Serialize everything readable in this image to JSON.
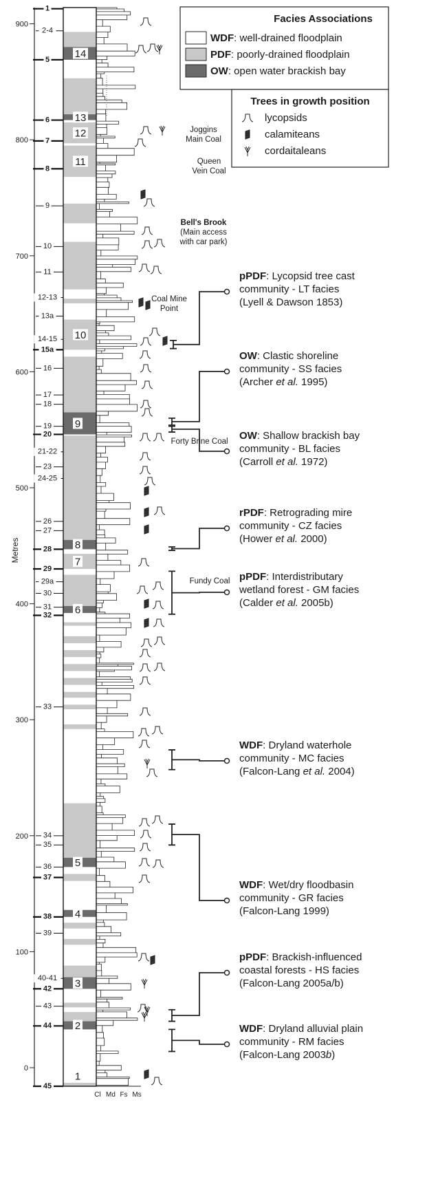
{
  "axis": {
    "label": "Metres",
    "ylim": [
      -16,
      914
    ],
    "yticks": [
      0,
      100,
      200,
      300,
      400,
      500,
      600,
      700,
      800,
      900
    ]
  },
  "seams": [
    {
      "label": "1",
      "metres": 913,
      "major": true
    },
    {
      "label": "2-4",
      "metres": 894,
      "major": false
    },
    {
      "label": "5",
      "metres": 869,
      "major": true
    },
    {
      "label": "6",
      "metres": 817,
      "major": true
    },
    {
      "label": "7",
      "metres": 799,
      "major": true
    },
    {
      "label": "8",
      "metres": 775,
      "major": true
    },
    {
      "label": "9",
      "metres": 743,
      "major": false
    },
    {
      "label": "10",
      "metres": 708,
      "major": false
    },
    {
      "label": "11",
      "metres": 686,
      "major": false
    },
    {
      "label": "12-13",
      "metres": 664,
      "major": false
    },
    {
      "label": "13a",
      "metres": 648,
      "major": false
    },
    {
      "label": "14-15",
      "metres": 628,
      "major": false
    },
    {
      "label": "15a",
      "metres": 619,
      "major": true
    },
    {
      "label": "16",
      "metres": 603,
      "major": false
    },
    {
      "label": "17",
      "metres": 580,
      "major": false
    },
    {
      "label": "18",
      "metres": 572,
      "major": false
    },
    {
      "label": "19",
      "metres": 553,
      "major": false
    },
    {
      "label": "20",
      "metres": 546,
      "major": true
    },
    {
      "label": "21-22",
      "metres": 531,
      "major": false
    },
    {
      "label": "23",
      "metres": 518,
      "major": false
    },
    {
      "label": "24-25",
      "metres": 508,
      "major": false
    },
    {
      "label": "26",
      "metres": 471,
      "major": false
    },
    {
      "label": "27",
      "metres": 463,
      "major": false
    },
    {
      "label": "28",
      "metres": 447,
      "major": true
    },
    {
      "label": "29",
      "metres": 430,
      "major": true
    },
    {
      "label": "29a",
      "metres": 419,
      "major": false
    },
    {
      "label": "30",
      "metres": 409,
      "major": false
    },
    {
      "label": "31",
      "metres": 397,
      "major": false
    },
    {
      "label": "32",
      "metres": 390,
      "major": true
    },
    {
      "label": "33",
      "metres": 311,
      "major": false
    },
    {
      "label": "34",
      "metres": 200,
      "major": false
    },
    {
      "label": "35",
      "metres": 192,
      "major": false
    },
    {
      "label": "36",
      "metres": 173,
      "major": false
    },
    {
      "label": "37",
      "metres": 164,
      "major": true
    },
    {
      "label": "38",
      "metres": 130,
      "major": true
    },
    {
      "label": "39",
      "metres": 116,
      "major": false
    },
    {
      "label": "40-41",
      "metres": 77,
      "major": false
    },
    {
      "label": "42",
      "metres": 68,
      "major": true
    },
    {
      "label": "43",
      "metres": 53,
      "major": false
    },
    {
      "label": "44",
      "metres": 36,
      "major": true
    },
    {
      "label": "45",
      "metres": -16,
      "major": true
    }
  ],
  "facies": [
    {
      "type": "PDF",
      "top": 893,
      "base": 885
    },
    {
      "type": "PDF",
      "top": 885,
      "base": 880
    },
    {
      "type": "OW",
      "top": 880,
      "base": 869,
      "label": "14"
    },
    {
      "type": "PDF",
      "top": 853,
      "base": 822
    },
    {
      "type": "OW",
      "top": 822,
      "base": 817,
      "label": "13"
    },
    {
      "type": "PDF",
      "top": 815,
      "base": 797,
      "label": "12"
    },
    {
      "type": "PDF",
      "top": 795,
      "base": 768,
      "label": "11"
    },
    {
      "type": "PDF",
      "top": 745,
      "base": 728
    },
    {
      "type": "PDF",
      "top": 712,
      "base": 671
    },
    {
      "type": "PDF",
      "top": 663,
      "base": 659
    },
    {
      "type": "PDF",
      "top": 645,
      "base": 619,
      "label": "10"
    },
    {
      "type": "PDF",
      "top": 613,
      "base": 565
    },
    {
      "type": "OW",
      "top": 565,
      "base": 546,
      "label": "9"
    },
    {
      "type": "PDF",
      "top": 545,
      "base": 455
    },
    {
      "type": "OW",
      "top": 455,
      "base": 447,
      "label": "8"
    },
    {
      "type": "PDF",
      "top": 443,
      "base": 430,
      "label": "7"
    },
    {
      "type": "PDF",
      "top": 425,
      "base": 398
    },
    {
      "type": "OW",
      "top": 398,
      "base": 392,
      "label": "6"
    },
    {
      "type": "PDF",
      "top": 384,
      "base": 381
    },
    {
      "type": "PDF",
      "top": 372,
      "base": 366
    },
    {
      "type": "PDF",
      "top": 360,
      "base": 354
    },
    {
      "type": "PDF",
      "top": 348,
      "base": 342
    },
    {
      "type": "PDF",
      "top": 336,
      "base": 330
    },
    {
      "type": "PDF",
      "top": 324,
      "base": 319
    },
    {
      "type": "PDF",
      "top": 313,
      "base": 309
    },
    {
      "type": "PDF",
      "top": 296,
      "base": 292
    },
    {
      "type": "PDF",
      "top": 228,
      "base": 181
    },
    {
      "type": "OW",
      "top": 181,
      "base": 173,
      "label": "5"
    },
    {
      "type": "PDF",
      "top": 167,
      "base": 161
    },
    {
      "type": "OW",
      "top": 136,
      "base": 130,
      "label": "4"
    },
    {
      "type": "PDF",
      "top": 125,
      "base": 120
    },
    {
      "type": "PDF",
      "top": 111,
      "base": 106
    },
    {
      "type": "PDF",
      "top": 88,
      "base": 78
    },
    {
      "type": "OW",
      "top": 78,
      "base": 68,
      "label": "3"
    },
    {
      "type": "PDF",
      "top": 56,
      "base": 52
    },
    {
      "type": "PDF",
      "top": 48,
      "base": 40
    },
    {
      "type": "OW",
      "top": 40,
      "base": 33,
      "label": "2"
    },
    {
      "type": "PDF",
      "top": -13,
      "base": -16,
      "label": "1"
    }
  ],
  "log_axis_labels": [
    "Cl",
    "Md",
    "Fs",
    "Ms"
  ],
  "legend": {
    "title": "Facies Associations",
    "items": [
      {
        "code": "WDF",
        "text": ": well-drained floodplain",
        "color": "#ffffff"
      },
      {
        "code": "PDF",
        "text": ": poorly-drained floodplain",
        "color": "#c8c8c8"
      },
      {
        "code": "OW",
        "text": ": open water brackish bay",
        "color": "#6b6b6b"
      }
    ],
    "trees_title": "Trees in growth position",
    "trees": [
      "lycopsids",
      "calamiteans",
      "cordaitaleans"
    ]
  },
  "sites": [
    {
      "lines": [
        "Joggins",
        "Main Coal"
      ]
    },
    {
      "lines": [
        "Queen",
        "Vein Coal"
      ]
    },
    {
      "title": "Bell's Brook",
      "lines": [
        "(Main access",
        "with car park)"
      ]
    },
    {
      "lines": [
        "Coal Mine",
        "Point"
      ]
    },
    {
      "lines": [
        "Forty Brine Coal"
      ]
    },
    {
      "lines": [
        "Fundy Coal"
      ]
    }
  ],
  "communities": [
    {
      "code": "pPDF",
      "heading": ": Lycopsid tree cast",
      "line2": "community - LT facies",
      "citation": [
        {
          "text": "(Lyell & Dawson 1853)"
        }
      ],
      "top": 627,
      "base": 620
    },
    {
      "code": "OW",
      "heading": ": Clastic shoreline",
      "line2": "community - SS facies",
      "citation": [
        {
          "text": "(Archer "
        },
        {
          "text": "et al.",
          "italic": true
        },
        {
          "text": " 1995)"
        }
      ],
      "top": 560,
      "base": 554
    },
    {
      "code": "OW",
      "heading": ": Shallow brackish bay",
      "line2": "community - BL facies",
      "citation": [
        {
          "text": "(Carroll "
        },
        {
          "text": "et al.",
          "italic": true
        },
        {
          "text": " 1972)"
        }
      ],
      "top": 553,
      "base": 548
    },
    {
      "code": "rPDF",
      "heading": ": Retrograding mire",
      "line2": "community - CZ facies",
      "citation": [
        {
          "text": "(Hower "
        },
        {
          "text": "et al.",
          "italic": true
        },
        {
          "text": " 2000)"
        }
      ],
      "top": 449,
      "base": 446
    },
    {
      "code": "pPDF",
      "heading": ": Interdistributary",
      "line2": "wetland forest - GM facies",
      "citation": [
        {
          "text": "(Calder "
        },
        {
          "text": "et al.",
          "italic": true
        },
        {
          "text": " 2005b)"
        }
      ],
      "top": 428,
      "base": 391
    },
    {
      "code": "WDF",
      "heading": ": Dryland waterhole",
      "line2": "community - MC facies",
      "citation": [
        {
          "text": "(Falcon-Lang "
        },
        {
          "text": "et al.",
          "italic": true
        },
        {
          "text": " 2004)"
        }
      ],
      "top": 274,
      "base": 257
    },
    {
      "code": "WDF",
      "heading": ": Wet/dry floodbasin",
      "line2": "community - GR facies",
      "citation": [
        {
          "text": "(Falcon-Lang 1999)"
        }
      ],
      "top": 210,
      "base": 192
    },
    {
      "code": "pPDF",
      "heading": ": Brackish-influenced",
      "line2": "coastal forests - HS facies",
      "citation": [
        {
          "text": "(Falcon-Lang 2005a/b)"
        }
      ],
      "top": 50,
      "base": 40
    },
    {
      "code": "WDF",
      "heading": ": Dryland alluvial plain",
      "line2": "community - RM facies",
      "citation": [
        {
          "text": "(Falcon-Lang 2003"
        },
        {
          "text": "b",
          "italic": true
        },
        {
          "text": ")"
        }
      ],
      "top": 33,
      "base": 14
    }
  ]
}
